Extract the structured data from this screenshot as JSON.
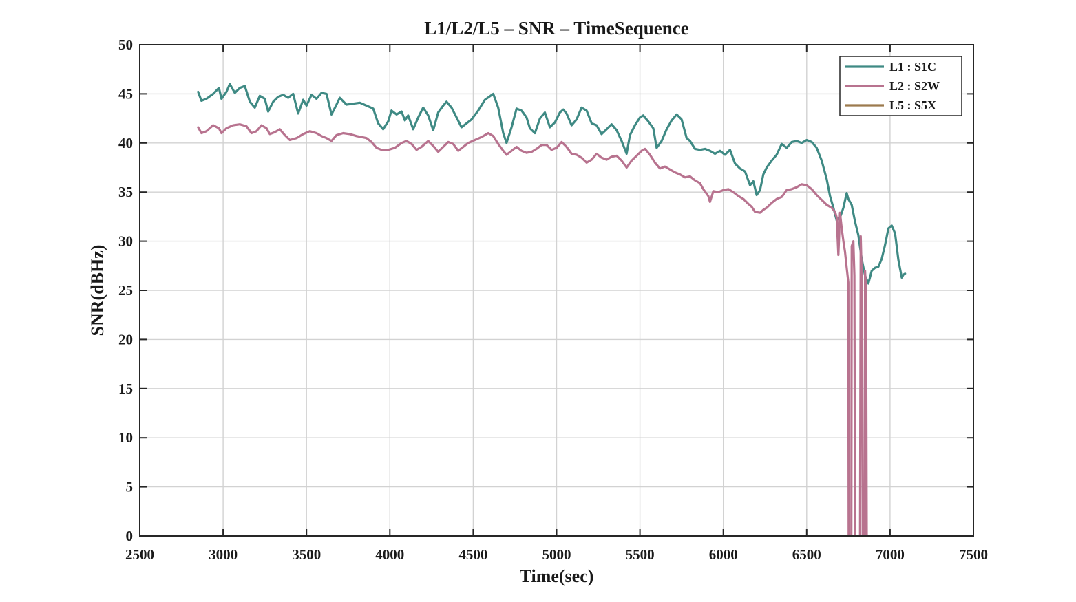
{
  "chart_data": {
    "type": "line",
    "title": "L1/L2/L5 – SNR – TimeSequence",
    "xlabel": "Time(sec)",
    "ylabel": "SNR(dBHz)",
    "xlim": [
      2500,
      7500
    ],
    "ylim": [
      0,
      50
    ],
    "xticks": [
      2500,
      3000,
      3500,
      4000,
      4500,
      5000,
      5500,
      6000,
      6500,
      7000,
      7500
    ],
    "yticks": [
      0,
      5,
      10,
      15,
      20,
      25,
      30,
      35,
      40,
      45,
      50
    ],
    "grid": true,
    "legend_position": "top-right",
    "series": [
      {
        "name": "L1 : S1C",
        "color": "#3f8a84",
        "points": [
          [
            2850,
            45.2
          ],
          [
            2870,
            44.3
          ],
          [
            2900,
            44.5
          ],
          [
            2940,
            45.0
          ],
          [
            2975,
            45.6
          ],
          [
            2990,
            44.5
          ],
          [
            3020,
            45.2
          ],
          [
            3040,
            46.0
          ],
          [
            3070,
            45.1
          ],
          [
            3100,
            45.6
          ],
          [
            3130,
            45.8
          ],
          [
            3160,
            44.2
          ],
          [
            3190,
            43.6
          ],
          [
            3220,
            44.8
          ],
          [
            3250,
            44.5
          ],
          [
            3270,
            43.2
          ],
          [
            3300,
            44.2
          ],
          [
            3330,
            44.7
          ],
          [
            3360,
            44.9
          ],
          [
            3390,
            44.6
          ],
          [
            3420,
            45.0
          ],
          [
            3450,
            43.0
          ],
          [
            3480,
            44.4
          ],
          [
            3500,
            43.8
          ],
          [
            3530,
            44.9
          ],
          [
            3560,
            44.5
          ],
          [
            3590,
            45.1
          ],
          [
            3620,
            45.0
          ],
          [
            3650,
            42.9
          ],
          [
            3680,
            43.9
          ],
          [
            3700,
            44.6
          ],
          [
            3740,
            43.9
          ],
          [
            3780,
            44.0
          ],
          [
            3820,
            44.1
          ],
          [
            3860,
            43.8
          ],
          [
            3900,
            43.5
          ],
          [
            3930,
            42.0
          ],
          [
            3960,
            41.4
          ],
          [
            3990,
            42.2
          ],
          [
            4010,
            43.3
          ],
          [
            4040,
            42.9
          ],
          [
            4070,
            43.2
          ],
          [
            4090,
            42.3
          ],
          [
            4110,
            42.8
          ],
          [
            4140,
            41.4
          ],
          [
            4170,
            42.6
          ],
          [
            4200,
            43.6
          ],
          [
            4230,
            42.8
          ],
          [
            4260,
            41.3
          ],
          [
            4290,
            43.1
          ],
          [
            4320,
            43.8
          ],
          [
            4340,
            44.2
          ],
          [
            4370,
            43.6
          ],
          [
            4400,
            42.6
          ],
          [
            4430,
            41.6
          ],
          [
            4460,
            42.0
          ],
          [
            4490,
            42.4
          ],
          [
            4530,
            43.3
          ],
          [
            4570,
            44.4
          ],
          [
            4620,
            45.0
          ],
          [
            4650,
            43.6
          ],
          [
            4680,
            41.0
          ],
          [
            4700,
            40.0
          ],
          [
            4730,
            41.6
          ],
          [
            4760,
            43.5
          ],
          [
            4790,
            43.3
          ],
          [
            4820,
            42.6
          ],
          [
            4840,
            41.5
          ],
          [
            4870,
            41.0
          ],
          [
            4900,
            42.5
          ],
          [
            4930,
            43.1
          ],
          [
            4960,
            41.6
          ],
          [
            4990,
            42.1
          ],
          [
            5020,
            43.1
          ],
          [
            5040,
            43.4
          ],
          [
            5060,
            43.0
          ],
          [
            5090,
            41.8
          ],
          [
            5120,
            42.4
          ],
          [
            5150,
            43.6
          ],
          [
            5180,
            43.3
          ],
          [
            5210,
            42.0
          ],
          [
            5240,
            41.8
          ],
          [
            5270,
            40.9
          ],
          [
            5300,
            41.4
          ],
          [
            5330,
            41.9
          ],
          [
            5360,
            41.3
          ],
          [
            5390,
            40.2
          ],
          [
            5420,
            38.9
          ],
          [
            5440,
            40.8
          ],
          [
            5470,
            41.8
          ],
          [
            5500,
            42.6
          ],
          [
            5520,
            42.8
          ],
          [
            5550,
            42.2
          ],
          [
            5580,
            41.5
          ],
          [
            5600,
            39.5
          ],
          [
            5630,
            40.2
          ],
          [
            5660,
            41.4
          ],
          [
            5690,
            42.3
          ],
          [
            5720,
            42.9
          ],
          [
            5750,
            42.4
          ],
          [
            5780,
            40.5
          ],
          [
            5800,
            40.2
          ],
          [
            5830,
            39.4
          ],
          [
            5860,
            39.3
          ],
          [
            5890,
            39.4
          ],
          [
            5920,
            39.2
          ],
          [
            5950,
            38.9
          ],
          [
            5980,
            39.2
          ],
          [
            6010,
            38.8
          ],
          [
            6040,
            39.3
          ],
          [
            6070,
            37.9
          ],
          [
            6100,
            37.4
          ],
          [
            6130,
            37.1
          ],
          [
            6160,
            35.7
          ],
          [
            6180,
            36.1
          ],
          [
            6200,
            34.7
          ],
          [
            6220,
            35.2
          ],
          [
            6240,
            36.8
          ],
          [
            6260,
            37.5
          ],
          [
            6290,
            38.2
          ],
          [
            6320,
            38.8
          ],
          [
            6350,
            39.9
          ],
          [
            6380,
            39.5
          ],
          [
            6410,
            40.1
          ],
          [
            6440,
            40.2
          ],
          [
            6470,
            40.0
          ],
          [
            6500,
            40.3
          ],
          [
            6530,
            40.1
          ],
          [
            6560,
            39.5
          ],
          [
            6590,
            38.2
          ],
          [
            6620,
            36.3
          ],
          [
            6640,
            34.6
          ],
          [
            6660,
            33.4
          ],
          [
            6680,
            32.1
          ],
          [
            6700,
            32.4
          ],
          [
            6720,
            33.4
          ],
          [
            6740,
            34.9
          ],
          [
            6750,
            34.3
          ],
          [
            6770,
            33.7
          ],
          [
            6790,
            32.0
          ],
          [
            6810,
            30.6
          ],
          [
            6830,
            28.2
          ],
          [
            6850,
            26.5
          ],
          [
            6870,
            25.7
          ],
          [
            6890,
            27.0
          ],
          [
            6910,
            27.3
          ],
          [
            6930,
            27.4
          ],
          [
            6950,
            28.2
          ],
          [
            6970,
            29.6
          ],
          [
            6990,
            31.3
          ],
          [
            7010,
            31.6
          ],
          [
            7030,
            30.8
          ],
          [
            7050,
            28.1
          ],
          [
            7070,
            26.3
          ],
          [
            7080,
            26.6
          ],
          [
            7090,
            26.7
          ]
        ]
      },
      {
        "name": "L2 : S2W",
        "color": "#b8738f",
        "points": [
          [
            2850,
            41.6
          ],
          [
            2870,
            41.0
          ],
          [
            2900,
            41.2
          ],
          [
            2940,
            41.8
          ],
          [
            2975,
            41.5
          ],
          [
            2990,
            41.0
          ],
          [
            3020,
            41.5
          ],
          [
            3060,
            41.8
          ],
          [
            3100,
            41.9
          ],
          [
            3140,
            41.7
          ],
          [
            3170,
            41.0
          ],
          [
            3200,
            41.2
          ],
          [
            3230,
            41.8
          ],
          [
            3260,
            41.5
          ],
          [
            3280,
            40.9
          ],
          [
            3310,
            41.1
          ],
          [
            3340,
            41.4
          ],
          [
            3370,
            40.8
          ],
          [
            3400,
            40.3
          ],
          [
            3440,
            40.5
          ],
          [
            3480,
            40.9
          ],
          [
            3520,
            41.2
          ],
          [
            3560,
            41.0
          ],
          [
            3590,
            40.7
          ],
          [
            3620,
            40.5
          ],
          [
            3650,
            40.2
          ],
          [
            3680,
            40.8
          ],
          [
            3720,
            41.0
          ],
          [
            3760,
            40.9
          ],
          [
            3800,
            40.7
          ],
          [
            3830,
            40.6
          ],
          [
            3860,
            40.5
          ],
          [
            3890,
            40.1
          ],
          [
            3920,
            39.5
          ],
          [
            3950,
            39.3
          ],
          [
            3990,
            39.3
          ],
          [
            4030,
            39.5
          ],
          [
            4070,
            40.0
          ],
          [
            4100,
            40.2
          ],
          [
            4130,
            39.9
          ],
          [
            4160,
            39.3
          ],
          [
            4190,
            39.6
          ],
          [
            4230,
            40.2
          ],
          [
            4260,
            39.7
          ],
          [
            4290,
            39.1
          ],
          [
            4320,
            39.6
          ],
          [
            4350,
            40.1
          ],
          [
            4380,
            39.9
          ],
          [
            4410,
            39.2
          ],
          [
            4440,
            39.6
          ],
          [
            4470,
            40.0
          ],
          [
            4510,
            40.3
          ],
          [
            4550,
            40.6
          ],
          [
            4590,
            41.0
          ],
          [
            4620,
            40.7
          ],
          [
            4650,
            39.9
          ],
          [
            4680,
            39.2
          ],
          [
            4700,
            38.8
          ],
          [
            4730,
            39.2
          ],
          [
            4760,
            39.6
          ],
          [
            4790,
            39.2
          ],
          [
            4820,
            39.0
          ],
          [
            4850,
            39.1
          ],
          [
            4880,
            39.4
          ],
          [
            4910,
            39.8
          ],
          [
            4940,
            39.8
          ],
          [
            4970,
            39.3
          ],
          [
            5000,
            39.5
          ],
          [
            5030,
            40.1
          ],
          [
            5060,
            39.6
          ],
          [
            5090,
            38.9
          ],
          [
            5120,
            38.8
          ],
          [
            5150,
            38.5
          ],
          [
            5180,
            38.0
          ],
          [
            5210,
            38.3
          ],
          [
            5240,
            38.9
          ],
          [
            5270,
            38.5
          ],
          [
            5300,
            38.3
          ],
          [
            5330,
            38.6
          ],
          [
            5360,
            38.7
          ],
          [
            5390,
            38.2
          ],
          [
            5420,
            37.5
          ],
          [
            5450,
            38.2
          ],
          [
            5480,
            38.7
          ],
          [
            5510,
            39.2
          ],
          [
            5530,
            39.4
          ],
          [
            5560,
            38.8
          ],
          [
            5590,
            38.0
          ],
          [
            5620,
            37.4
          ],
          [
            5650,
            37.6
          ],
          [
            5680,
            37.3
          ],
          [
            5710,
            37.0
          ],
          [
            5740,
            36.8
          ],
          [
            5770,
            36.5
          ],
          [
            5800,
            36.6
          ],
          [
            5830,
            36.2
          ],
          [
            5860,
            35.9
          ],
          [
            5880,
            35.3
          ],
          [
            5910,
            34.6
          ],
          [
            5920,
            34.0
          ],
          [
            5940,
            35.1
          ],
          [
            5970,
            35.0
          ],
          [
            6000,
            35.2
          ],
          [
            6030,
            35.3
          ],
          [
            6060,
            35.0
          ],
          [
            6090,
            34.6
          ],
          [
            6120,
            34.3
          ],
          [
            6150,
            33.8
          ],
          [
            6170,
            33.5
          ],
          [
            6190,
            33.0
          ],
          [
            6220,
            32.9
          ],
          [
            6240,
            33.2
          ],
          [
            6260,
            33.4
          ],
          [
            6290,
            33.9
          ],
          [
            6320,
            34.3
          ],
          [
            6350,
            34.5
          ],
          [
            6380,
            35.2
          ],
          [
            6410,
            35.3
          ],
          [
            6440,
            35.5
          ],
          [
            6470,
            35.8
          ],
          [
            6500,
            35.7
          ],
          [
            6530,
            35.3
          ],
          [
            6560,
            34.7
          ],
          [
            6590,
            34.2
          ],
          [
            6620,
            33.7
          ],
          [
            6650,
            33.4
          ],
          [
            6670,
            33.0
          ],
          [
            6680,
            32.4
          ],
          [
            6690,
            28.6
          ],
          [
            6700,
            32.9
          ],
          [
            6710,
            31.3
          ],
          [
            6720,
            30.0
          ],
          [
            6730,
            28.9
          ],
          [
            6740,
            27.3
          ],
          [
            6750,
            25.8
          ],
          [
            6752,
            0.0
          ],
          [
            6768,
            0.0
          ],
          [
            6770,
            29.5
          ],
          [
            6780,
            30.0
          ],
          [
            6786,
            26.5
          ],
          [
            6790,
            0.0
          ],
          [
            6820,
            0.0
          ],
          [
            6824,
            30.5
          ],
          [
            6832,
            25.0
          ],
          [
            6836,
            0.0
          ],
          [
            6848,
            0.0
          ],
          [
            6850,
            27.0
          ],
          [
            6856,
            25.0
          ],
          [
            6860,
            0.0
          ]
        ]
      },
      {
        "name": "L5 : S5X",
        "color": "#9c7a4e",
        "points": [
          [
            2850,
            0.0
          ],
          [
            7090,
            0.0
          ]
        ]
      }
    ]
  }
}
